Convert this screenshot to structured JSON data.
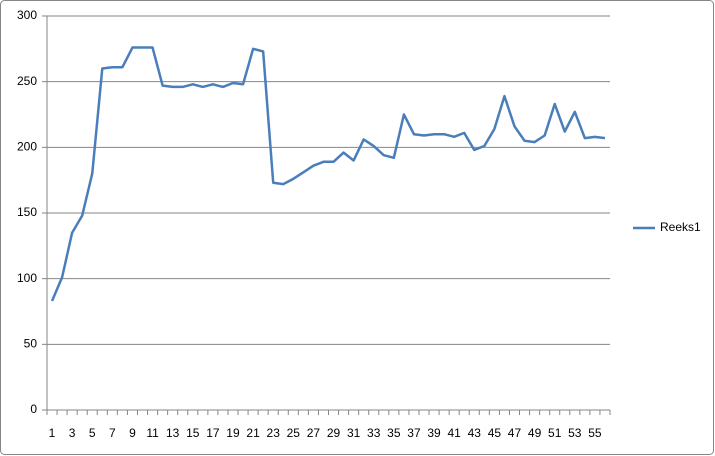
{
  "chart_data": {
    "type": "line",
    "categories": [
      1,
      null,
      3,
      null,
      5,
      null,
      7,
      null,
      9,
      null,
      11,
      null,
      13,
      null,
      15,
      null,
      17,
      null,
      19,
      null,
      21,
      null,
      23,
      null,
      25,
      null,
      27,
      null,
      29,
      null,
      31,
      null,
      33,
      null,
      35,
      null,
      37,
      null,
      39,
      null,
      41,
      null,
      43,
      null,
      45,
      null,
      47,
      null,
      49,
      null,
      51,
      null,
      53,
      null,
      55,
      null
    ],
    "series": [
      {
        "name": "Reeks1",
        "color": "#4a7ebb",
        "values": [
          83,
          101,
          135,
          148,
          180,
          260,
          261,
          261,
          276,
          276,
          276,
          247,
          246,
          246,
          248,
          246,
          248,
          246,
          249,
          248,
          275,
          273,
          173,
          172,
          176,
          181,
          186,
          189,
          189,
          196,
          190,
          206,
          201,
          194,
          192,
          225,
          210,
          209,
          210,
          210,
          208,
          211,
          198,
          201,
          214,
          239,
          216,
          205,
          204,
          209,
          233,
          212,
          227,
          207,
          208,
          207
        ]
      }
    ],
    "ylim": [
      0,
      300
    ],
    "yticks": [
      0,
      50,
      100,
      150,
      200,
      250,
      300
    ],
    "grid": true,
    "legend": "right"
  }
}
